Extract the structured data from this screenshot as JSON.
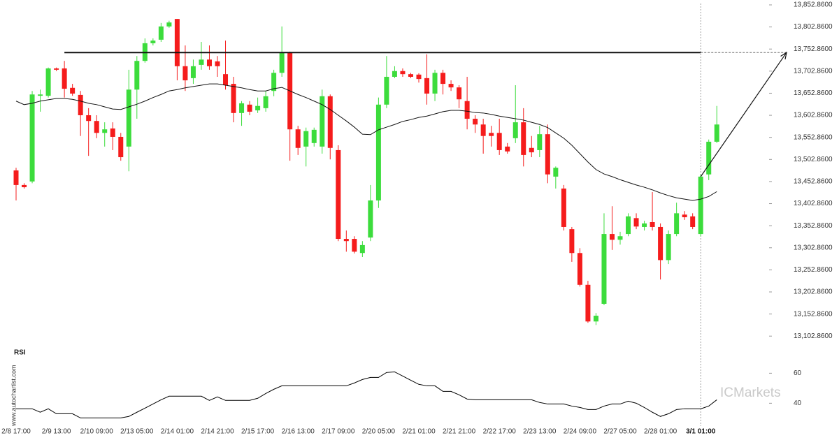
{
  "chart_data": [
    {
      "type": "candlestick",
      "categories": [
        "2/8 17:00",
        null,
        null,
        null,
        null,
        "2/9 13:00",
        null,
        null,
        null,
        null,
        "2/10 09:00",
        null,
        null,
        null,
        null,
        "2/13 05:00",
        null,
        null,
        null,
        null,
        "2/14 01:00",
        null,
        null,
        null,
        null,
        "2/14 21:00",
        null,
        null,
        null,
        null,
        "2/15 17:00",
        null,
        null,
        null,
        null,
        "2/16 13:00",
        null,
        null,
        null,
        null,
        "2/17 09:00",
        null,
        null,
        null,
        null,
        "2/20 05:00",
        null,
        null,
        null,
        null,
        "2/21 01:00",
        null,
        null,
        null,
        null,
        "2/21 21:00",
        null,
        null,
        null,
        null,
        "2/22 17:00",
        null,
        null,
        null,
        null,
        "2/23 13:00",
        null,
        null,
        null,
        null,
        "2/24 09:00",
        null,
        null,
        null,
        null,
        "2/27 05:00",
        null,
        null,
        null,
        null,
        "2/28 01:00",
        null,
        null,
        null,
        null,
        "3/1 01:00",
        null,
        null
      ],
      "open": [
        13478,
        13445,
        13453,
        13647,
        13647,
        13709,
        13709,
        13665,
        13649,
        13603,
        13590,
        13563,
        13573,
        13554,
        13532,
        13661,
        13726,
        13766,
        13774,
        13804,
        13821,
        13714,
        13687,
        13717,
        13729,
        13725,
        13696,
        13674,
        13608,
        13627,
        13614,
        13619,
        13658,
        13699,
        13744,
        13571,
        13532,
        13540,
        13532,
        13646,
        13524,
        13323,
        13323,
        13291,
        13326,
        13410,
        13627,
        13690,
        13703,
        13696,
        13695,
        13687,
        13652,
        13699,
        13674,
        13666,
        13635,
        13595,
        13582,
        13563,
        13563,
        13532,
        13551,
        13587,
        13529,
        13524,
        13560,
        13464,
        13437,
        13345,
        13291,
        13219,
        13136,
        13176,
        13334,
        13321,
        13334,
        13370,
        13350,
        13361,
        13350,
        13275,
        13334,
        13378,
        13374,
        13334,
        13469,
        13543
      ],
      "high": [
        13484,
        13449,
        13658,
        13661,
        13711,
        13711,
        13726,
        13674,
        13658,
        13619,
        13603,
        13587,
        13587,
        13563,
        13706,
        13737,
        13777,
        13777,
        13812,
        13817,
        13821,
        13761,
        13729,
        13769,
        13761,
        13737,
        13772,
        13690,
        13635,
        13635,
        13643,
        13658,
        13706,
        13804,
        13747,
        13579,
        13575,
        13575,
        13661,
        13650,
        13535,
        13342,
        13329,
        13318,
        13445,
        13643,
        13737,
        13714,
        13709,
        13699,
        13698,
        13741,
        13706,
        13706,
        13682,
        13671,
        13690,
        13603,
        13595,
        13579,
        13595,
        13540,
        13671,
        13619,
        13556,
        13579,
        13582,
        13487,
        13445,
        13350,
        13302,
        13228,
        13155,
        13381,
        13397,
        13339,
        13381,
        13381,
        13364,
        13429,
        13358,
        13342,
        13405,
        13386,
        13381,
        13469,
        13548,
        13624
      ],
      "low": [
        13410,
        13437,
        13449,
        13611,
        13643,
        13703,
        13643,
        13647,
        13556,
        13511,
        13551,
        13532,
        13524,
        13500,
        13476,
        13595,
        13722,
        13761,
        13769,
        13801,
        13682,
        13658,
        13674,
        13706,
        13706,
        13690,
        13661,
        13587,
        13579,
        13603,
        13608,
        13611,
        13646,
        13690,
        13500,
        13513,
        13487,
        13532,
        13516,
        13503,
        13318,
        13294,
        13290,
        13282,
        13318,
        13393,
        13619,
        13687,
        13690,
        13687,
        13677,
        13627,
        13635,
        13650,
        13658,
        13619,
        13571,
        13563,
        13516,
        13532,
        13513,
        13516,
        13540,
        13487,
        13508,
        13508,
        13449,
        13437,
        13342,
        13271,
        13215,
        13133,
        13128,
        13173,
        13298,
        13310,
        13329,
        13345,
        13342,
        13342,
        13231,
        13266,
        13329,
        13366,
        13345,
        13329,
        13456,
        13540
      ],
      "close": [
        13445,
        13440,
        13650,
        13650,
        13709,
        13706,
        13663,
        13652,
        13603,
        13590,
        13563,
        13571,
        13554,
        13508,
        13661,
        13726,
        13766,
        13772,
        13804,
        13813,
        13714,
        13682,
        13714,
        13729,
        13714,
        13714,
        13671,
        13608,
        13630,
        13611,
        13624,
        13646,
        13699,
        13744,
        13571,
        13529,
        13567,
        13570,
        13646,
        13529,
        13323,
        13318,
        13294,
        13309,
        13410,
        13627,
        13690,
        13703,
        13696,
        13690,
        13685,
        13652,
        13699,
        13674,
        13666,
        13639,
        13595,
        13582,
        13556,
        13556,
        13524,
        13521,
        13587,
        13513,
        13519,
        13560,
        13469,
        13484,
        13350,
        13291,
        13219,
        13136,
        13149,
        13334,
        13321,
        13329,
        13374,
        13351,
        13358,
        13350,
        13275,
        13334,
        13381,
        13372,
        13350,
        13464,
        13543,
        13582
      ],
      "moving_average": [
        13635,
        13627,
        13630,
        13635,
        13638,
        13641,
        13641,
        13639,
        13635,
        13630,
        13627,
        13622,
        13617,
        13616,
        13622,
        13628,
        13635,
        13643,
        13650,
        13658,
        13661,
        13665,
        13668,
        13671,
        13674,
        13674,
        13671,
        13668,
        13665,
        13661,
        13658,
        13658,
        13663,
        13666,
        13658,
        13650,
        13643,
        13635,
        13627,
        13616,
        13603,
        13590,
        13576,
        13560,
        13559,
        13570,
        13576,
        13582,
        13589,
        13593,
        13598,
        13601,
        13606,
        13611,
        13614,
        13614,
        13612,
        13609,
        13608,
        13605,
        13601,
        13598,
        13595,
        13592,
        13587,
        13582,
        13575,
        13563,
        13551,
        13535,
        13516,
        13497,
        13480,
        13470,
        13464,
        13457,
        13451,
        13445,
        13440,
        13434,
        13427,
        13421,
        13416,
        13413,
        13410,
        13413,
        13419,
        13430
      ],
      "level": 13745,
      "up_color": "#3cdc3c",
      "down_color": "#f51c1c",
      "ylim": [
        13089,
        13856
      ],
      "yticks": [
        {
          "value": 13102.86,
          "label": "13,102.8600"
        },
        {
          "value": 13152.86,
          "label": "13,152.8600"
        },
        {
          "value": 13202.86,
          "label": "13,202.8600"
        },
        {
          "value": 13252.86,
          "label": "13,252.8600"
        },
        {
          "value": 13302.86,
          "label": "13,302.8600"
        },
        {
          "value": 13352.86,
          "label": "13,352.8600"
        },
        {
          "value": 13402.86,
          "label": "13,402.8600"
        },
        {
          "value": 13452.86,
          "label": "13,452.8600"
        },
        {
          "value": 13502.86,
          "label": "13,502.8600"
        },
        {
          "value": 13552.86,
          "label": "13,552.8600"
        },
        {
          "value": 13602.86,
          "label": "13,602.8600"
        },
        {
          "value": 13652.86,
          "label": "13,652.8600"
        },
        {
          "value": 13702.86,
          "label": "13,702.8600"
        },
        {
          "value": 13752.86,
          "label": "13,752.8600"
        },
        {
          "value": 13802.86,
          "label": "13,802.8600"
        },
        {
          "value": 13852.86,
          "label": "13,852.8600"
        }
      ]
    },
    {
      "type": "line",
      "title": "RSI",
      "values": [
        36.3,
        36.3,
        36.3,
        34.0,
        36.3,
        33.0,
        33.0,
        33.0,
        30.2,
        30.2,
        30.2,
        30.2,
        30.2,
        30.2,
        31.2,
        34.0,
        36.7,
        39.5,
        42.3,
        44.7,
        44.7,
        44.7,
        44.7,
        44.7,
        41.9,
        44.2,
        41.9,
        41.9,
        41.9,
        41.9,
        43.3,
        46.5,
        49.3,
        51.6,
        51.6,
        51.6,
        51.6,
        51.6,
        51.6,
        51.6,
        51.6,
        51.6,
        53.5,
        55.8,
        57.2,
        57.2,
        60.5,
        60.9,
        58.1,
        55.3,
        52.6,
        51.6,
        51.6,
        47.9,
        47.9,
        45.6,
        42.8,
        42.3,
        42.3,
        42.3,
        42.3,
        42.3,
        42.3,
        42.3,
        42.3,
        40.5,
        39.5,
        39.5,
        39.5,
        38.1,
        37.2,
        35.8,
        35.8,
        38.1,
        39.5,
        39.5,
        41.4,
        40.0,
        37.2,
        34.0,
        31.2,
        33.0,
        35.8,
        36.3,
        36.3,
        36.3,
        38.1,
        42.3
      ],
      "color": "#000000",
      "ylim": [
        29,
        76
      ],
      "yticks": [
        40,
        60
      ]
    }
  ],
  "watermark": "www.autochartist.com",
  "logo": "ICMarkets"
}
